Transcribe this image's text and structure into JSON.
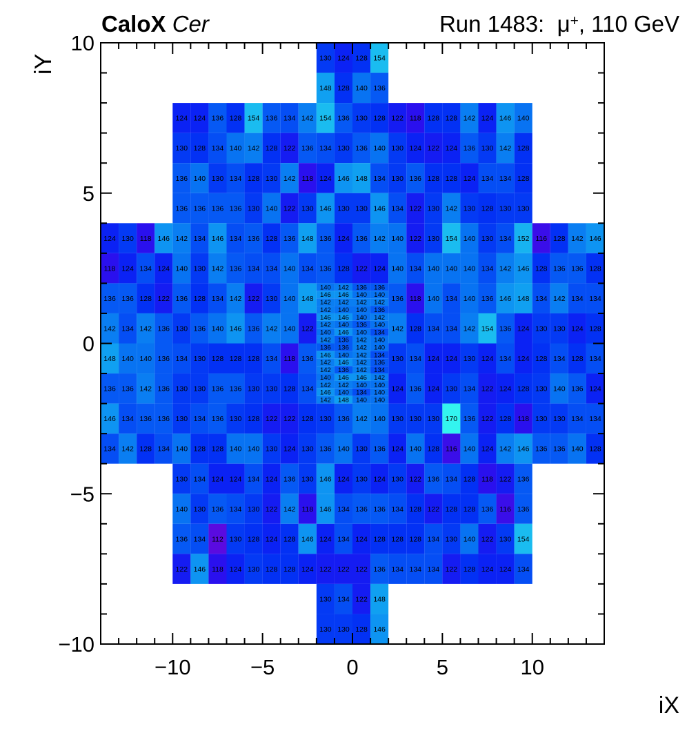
{
  "header": {
    "brand": "CaloX",
    "brand_sub": "Cer",
    "run_prefix": "Run 1483:  ",
    "particle": "μ",
    "particle_charge": "+",
    "run_suffix": ", 110 GeV"
  },
  "axes": {
    "x": {
      "title": "iX",
      "min": -14,
      "max": 14,
      "major_ticks": [
        -10,
        -5,
        0,
        5,
        10
      ],
      "tick_labels": [
        "−10",
        "−5",
        "0",
        "5",
        "10"
      ]
    },
    "y": {
      "title": "iY",
      "min": -10,
      "max": 10,
      "major_ticks": [
        10,
        5,
        0,
        -5,
        -10
      ],
      "tick_labels": [
        "10",
        "5",
        "0",
        "−5",
        "−10"
      ]
    }
  },
  "chart_data": {
    "type": "heatmap",
    "title": "Run 1483: μ+, 110 GeV",
    "xlabel": "iX",
    "ylabel": "iY",
    "xlim": [
      -14,
      14
    ],
    "ylim": [
      -10,
      10
    ],
    "grid": false,
    "value_range": [
      112,
      170
    ],
    "palette_stops": [
      [
        112,
        "#5a0be0"
      ],
      [
        118,
        "#2a10ee"
      ],
      [
        124,
        "#0b22f4"
      ],
      [
        128,
        "#0331f4"
      ],
      [
        132,
        "#0443f4"
      ],
      [
        136,
        "#0659f4"
      ],
      [
        140,
        "#0873f2"
      ],
      [
        144,
        "#0b88f2"
      ],
      [
        148,
        "#10a0f1"
      ],
      [
        154,
        "#1abcf0"
      ],
      [
        162,
        "#26daf0"
      ],
      [
        170,
        "#33f4ef"
      ]
    ],
    "coarse_segments": [
      {
        "iy_top": 10,
        "ix_left": -2,
        "values": [
          130,
          124,
          128,
          154
        ]
      },
      {
        "iy_top": 9,
        "ix_left": -2,
        "values": [
          148,
          128,
          140,
          136
        ]
      },
      {
        "iy_top": 8,
        "ix_left": -10,
        "values": [
          124,
          124,
          136,
          128,
          154,
          136,
          134,
          142,
          154,
          136,
          130,
          128,
          122,
          118,
          128,
          128,
          142,
          124,
          146,
          140
        ]
      },
      {
        "iy_top": 7,
        "ix_left": -10,
        "values": [
          130,
          128,
          134,
          140,
          142,
          128,
          122,
          136,
          134,
          130,
          136,
          140,
          130,
          124,
          122,
          124,
          136,
          130,
          142,
          128
        ]
      },
      {
        "iy_top": 6,
        "ix_left": -10,
        "values": [
          136,
          140,
          130,
          134,
          128,
          130,
          142,
          118,
          124,
          146,
          148,
          134,
          130,
          136,
          128,
          128,
          124,
          134,
          134,
          128
        ]
      },
      {
        "iy_top": 5,
        "ix_left": -10,
        "values": [
          136,
          136,
          136,
          136,
          130,
          140,
          122,
          130,
          146,
          130,
          130,
          146,
          134,
          122,
          130,
          142,
          130,
          128,
          130,
          130
        ]
      },
      {
        "iy_top": 4,
        "ix_left": -14,
        "values": [
          124,
          130,
          118,
          146,
          142,
          134,
          146,
          134,
          136,
          128,
          136,
          148,
          136,
          124,
          136,
          142,
          140,
          122,
          130,
          154,
          140,
          130,
          134,
          152,
          116,
          128,
          142,
          146
        ]
      },
      {
        "iy_top": 3,
        "ix_left": -14,
        "values": [
          118,
          124,
          134,
          124,
          140,
          130,
          142,
          136,
          134,
          134,
          140,
          134,
          136,
          128,
          122,
          124,
          140,
          134,
          140,
          140,
          140,
          134,
          142,
          146,
          128,
          136,
          136,
          128
        ]
      },
      {
        "iy_top": 2,
        "ix_left": -14,
        "values": [
          136,
          136,
          128,
          122,
          136,
          128,
          134,
          142,
          122,
          130,
          140,
          148
        ]
      },
      {
        "iy_top": 2,
        "ix_left": 2,
        "values": [
          136,
          118,
          140,
          134,
          140,
          136,
          146,
          148,
          134,
          142,
          134,
          134
        ]
      },
      {
        "iy_top": 1,
        "ix_left": -14,
        "values": [
          142,
          134,
          142,
          136,
          130,
          136,
          140,
          146,
          136,
          142,
          140,
          122
        ]
      },
      {
        "iy_top": 1,
        "ix_left": 2,
        "values": [
          142,
          128,
          134,
          134,
          142,
          154,
          136,
          124,
          130,
          130,
          124,
          128
        ]
      },
      {
        "iy_top": 0,
        "ix_left": -14,
        "values": [
          148,
          140,
          140,
          136,
          134,
          130,
          128,
          128,
          128,
          134,
          118,
          136
        ]
      },
      {
        "iy_top": 0,
        "ix_left": 2,
        "values": [
          130,
          134,
          124,
          124,
          130,
          124,
          134,
          124,
          128,
          134,
          128,
          134
        ]
      },
      {
        "iy_top": -1,
        "ix_left": -14,
        "values": [
          136,
          136,
          142,
          136,
          130,
          130,
          136,
          136,
          130,
          130,
          128,
          134
        ]
      },
      {
        "iy_top": -1,
        "ix_left": 2,
        "values": [
          124,
          136,
          124,
          130,
          134,
          122,
          124,
          128,
          130,
          140,
          136,
          124
        ]
      },
      {
        "iy_top": -2,
        "ix_left": -14,
        "values": [
          146,
          134,
          136,
          136,
          130,
          134,
          136,
          130,
          128,
          122,
          122,
          128,
          130,
          136,
          142,
          140,
          130,
          130,
          130,
          170,
          136,
          122,
          128,
          118,
          130,
          130,
          134,
          134
        ]
      },
      {
        "iy_top": -3,
        "ix_left": -14,
        "values": [
          134,
          142,
          128,
          134,
          140,
          128,
          128,
          140,
          140,
          130,
          124,
          130,
          136,
          140,
          130,
          136,
          124,
          140,
          128,
          116,
          140,
          124,
          142,
          146,
          136,
          136,
          140,
          128
        ]
      },
      {
        "iy_top": -4,
        "ix_left": -10,
        "values": [
          130,
          134,
          124,
          124,
          134,
          124,
          136,
          130,
          146,
          124,
          130,
          124,
          130,
          122,
          136,
          134,
          128,
          118,
          122,
          136
        ]
      },
      {
        "iy_top": -5,
        "ix_left": -10,
        "values": [
          140,
          130,
          136,
          134,
          130,
          122,
          142,
          118,
          146,
          134,
          136,
          136,
          134,
          128,
          122,
          128,
          128,
          136,
          116,
          136
        ]
      },
      {
        "iy_top": -6,
        "ix_left": -10,
        "values": [
          136,
          134,
          112,
          130,
          128,
          124,
          128,
          146,
          124,
          134,
          124,
          128,
          128,
          128,
          134,
          130,
          140,
          122,
          130,
          154
        ]
      },
      {
        "iy_top": -7,
        "ix_left": -10,
        "values": [
          122,
          146,
          118,
          124,
          130,
          128,
          128,
          124,
          122,
          122,
          122,
          136,
          134,
          134,
          134,
          122,
          128,
          124,
          124,
          134
        ]
      },
      {
        "iy_top": -8,
        "ix_left": -2,
        "values": [
          130,
          134,
          122,
          148
        ]
      },
      {
        "iy_top": -9,
        "ix_left": -2,
        "values": [
          130,
          130,
          128,
          146
        ]
      }
    ],
    "fine_block": {
      "ix_left": -2,
      "iy_top": 2,
      "cell_w": 1,
      "row_h": 0.25,
      "rows": [
        [
          140,
          142,
          136,
          136
        ],
        [
          146,
          146,
          140,
          140
        ],
        [
          142,
          142,
          142,
          142
        ],
        [
          142,
          140,
          140,
          136
        ],
        [
          146,
          146,
          140,
          142
        ],
        [
          142,
          140,
          136,
          140
        ],
        [
          140,
          146,
          140,
          134
        ],
        [
          142,
          136,
          142,
          140
        ],
        [
          136,
          136,
          142,
          140
        ],
        [
          146,
          140,
          142,
          134
        ],
        [
          142,
          146,
          142,
          136
        ],
        [
          142,
          136,
          142,
          134
        ],
        [
          140,
          146,
          146,
          142
        ],
        [
          142,
          142,
          140,
          140
        ],
        [
          146,
          140,
          134,
          140
        ],
        [
          142,
          148,
          140,
          140
        ]
      ]
    }
  }
}
